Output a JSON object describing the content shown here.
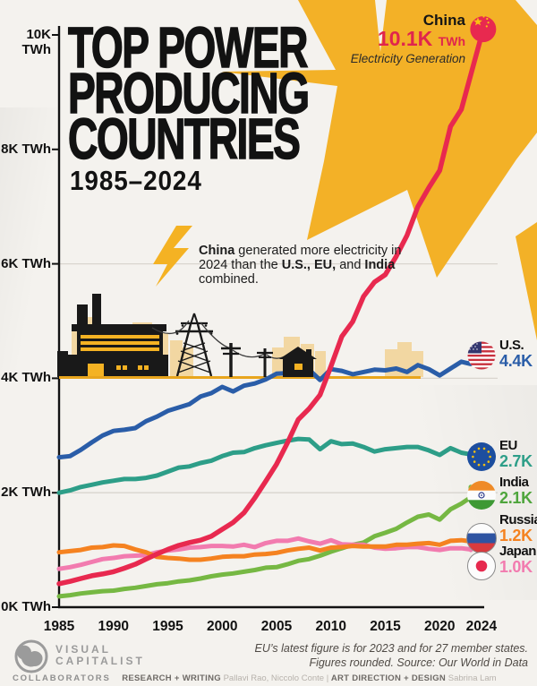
{
  "header": {
    "title_line1": "TOP POWER",
    "title_line2": "PRODUCING",
    "title_line3": "COUNTRIES",
    "subtitle": "1985–2024"
  },
  "annotation_china": {
    "country": "China",
    "value": "10.1K",
    "unit": "TWh",
    "caption": "Electricity Generation"
  },
  "callout": {
    "segments": [
      {
        "text": "China",
        "bold": true
      },
      {
        "text": " generated more electricity in 2024 than the ",
        "bold": false
      },
      {
        "text": "U.S., EU,",
        "bold": true
      },
      {
        "text": " and ",
        "bold": false
      },
      {
        "text": "India",
        "bold": true
      },
      {
        "text": " combined.",
        "bold": false
      }
    ]
  },
  "chart_data": {
    "type": "line",
    "title": "Top Power Producing Countries 1985–2024",
    "ylabel": "Electricity generation, thousand TWh",
    "x": [
      1985,
      1986,
      1987,
      1988,
      1989,
      1990,
      1991,
      1992,
      1993,
      1994,
      1995,
      1996,
      1997,
      1998,
      1999,
      2000,
      2001,
      2002,
      2003,
      2004,
      2005,
      2006,
      2007,
      2008,
      2009,
      2010,
      2011,
      2012,
      2013,
      2014,
      2015,
      2016,
      2017,
      2018,
      2019,
      2020,
      2021,
      2022,
      2023,
      2024
    ],
    "y_axis": {
      "range": [
        0,
        10.5
      ],
      "ticks": [
        {
          "label": "10K TWh",
          "value": 10
        },
        {
          "label": "8K TWh",
          "value": 8
        },
        {
          "label": "6K TWh",
          "value": 6
        },
        {
          "label": "4K TWh",
          "value": 4
        },
        {
          "label": "2K TWh",
          "value": 2
        },
        {
          "label": "0K TWh",
          "value": 0
        }
      ]
    },
    "x_axis": {
      "tick_years": [
        1985,
        1990,
        1995,
        2000,
        2005,
        2010,
        2015,
        2020,
        2024
      ]
    },
    "gridlines": [
      2,
      4,
      6
    ],
    "series": [
      {
        "id": "china",
        "name": "China",
        "color": "#E8294F",
        "end_value_label": "10.1K",
        "values": [
          0.41,
          0.45,
          0.5,
          0.55,
          0.58,
          0.62,
          0.68,
          0.75,
          0.84,
          0.93,
          1.01,
          1.08,
          1.13,
          1.17,
          1.24,
          1.36,
          1.48,
          1.65,
          1.91,
          2.2,
          2.5,
          2.87,
          3.28,
          3.47,
          3.71,
          4.21,
          4.73,
          4.99,
          5.43,
          5.68,
          5.81,
          6.13,
          6.5,
          7.0,
          7.33,
          7.63,
          8.4,
          8.7,
          9.4,
          10.1
        ]
      },
      {
        "id": "us",
        "name": "U.S.",
        "color": "#2A5DA8",
        "end_value_label": "4.4K",
        "values": [
          2.62,
          2.64,
          2.75,
          2.88,
          3.0,
          3.08,
          3.1,
          3.13,
          3.25,
          3.33,
          3.43,
          3.49,
          3.55,
          3.68,
          3.74,
          3.85,
          3.77,
          3.87,
          3.91,
          3.98,
          4.08,
          4.09,
          4.17,
          4.15,
          3.97,
          4.16,
          4.13,
          4.07,
          4.11,
          4.15,
          4.14,
          4.17,
          4.11,
          4.23,
          4.16,
          4.05,
          4.17,
          4.29,
          4.25,
          4.4
        ]
      },
      {
        "id": "eu",
        "name": "EU",
        "color": "#2D9E88",
        "end_value_label": "2.7K",
        "values": [
          2.0,
          2.04,
          2.1,
          2.14,
          2.18,
          2.21,
          2.24,
          2.24,
          2.26,
          2.3,
          2.37,
          2.44,
          2.46,
          2.52,
          2.56,
          2.64,
          2.7,
          2.71,
          2.78,
          2.83,
          2.87,
          2.91,
          2.94,
          2.93,
          2.76,
          2.9,
          2.85,
          2.86,
          2.8,
          2.72,
          2.76,
          2.78,
          2.8,
          2.8,
          2.74,
          2.66,
          2.78,
          2.7,
          2.67,
          2.7
        ]
      },
      {
        "id": "india",
        "name": "India",
        "color": "#4EA53C",
        "line_color": "#76B843",
        "end_value_label": "2.1K",
        "values": [
          0.19,
          0.21,
          0.24,
          0.26,
          0.28,
          0.29,
          0.32,
          0.34,
          0.37,
          0.4,
          0.42,
          0.45,
          0.47,
          0.5,
          0.54,
          0.57,
          0.59,
          0.62,
          0.65,
          0.69,
          0.7,
          0.75,
          0.81,
          0.84,
          0.9,
          0.97,
          1.03,
          1.09,
          1.13,
          1.24,
          1.3,
          1.37,
          1.48,
          1.58,
          1.62,
          1.53,
          1.71,
          1.81,
          1.92,
          2.1
        ]
      },
      {
        "id": "russia",
        "name": "Russia",
        "color": "#F58220",
        "end_value_label": "1.2K",
        "values": [
          0.96,
          0.98,
          1.0,
          1.04,
          1.05,
          1.08,
          1.07,
          1.01,
          0.96,
          0.88,
          0.86,
          0.85,
          0.83,
          0.83,
          0.85,
          0.88,
          0.89,
          0.89,
          0.92,
          0.93,
          0.95,
          0.99,
          1.02,
          1.04,
          0.99,
          1.04,
          1.05,
          1.07,
          1.06,
          1.06,
          1.06,
          1.09,
          1.09,
          1.11,
          1.12,
          1.09,
          1.16,
          1.17,
          1.15,
          1.2
        ]
      },
      {
        "id": "japan",
        "name": "Japan",
        "color": "#F27BAF",
        "end_value_label": "1.0K",
        "values": [
          0.67,
          0.7,
          0.74,
          0.79,
          0.84,
          0.86,
          0.89,
          0.9,
          0.91,
          0.96,
          0.99,
          1.01,
          1.04,
          1.05,
          1.07,
          1.07,
          1.06,
          1.09,
          1.05,
          1.12,
          1.16,
          1.16,
          1.2,
          1.15,
          1.11,
          1.17,
          1.1,
          1.09,
          1.09,
          1.04,
          1.02,
          1.03,
          1.05,
          1.05,
          1.02,
          1.0,
          1.03,
          1.03,
          1.01,
          1.0
        ]
      }
    ]
  },
  "footer": {
    "note_line1": "EU’s latest figure is for 2023 and for 27 member states.",
    "note_line2": "Figures rounded. Source: Our World in Data",
    "brand_line1": "VISUAL",
    "brand_line2": "CAPITALIST",
    "collaborators_label": "COLLABORATORS",
    "credit1_label": "RESEARCH + WRITING",
    "credit1_names": "Pallavi Rao, Niccolo Conte",
    "divider": "|",
    "credit2_label": "ART DIRECTION + DESIGN",
    "credit2_names": "Sabrina Lam"
  }
}
